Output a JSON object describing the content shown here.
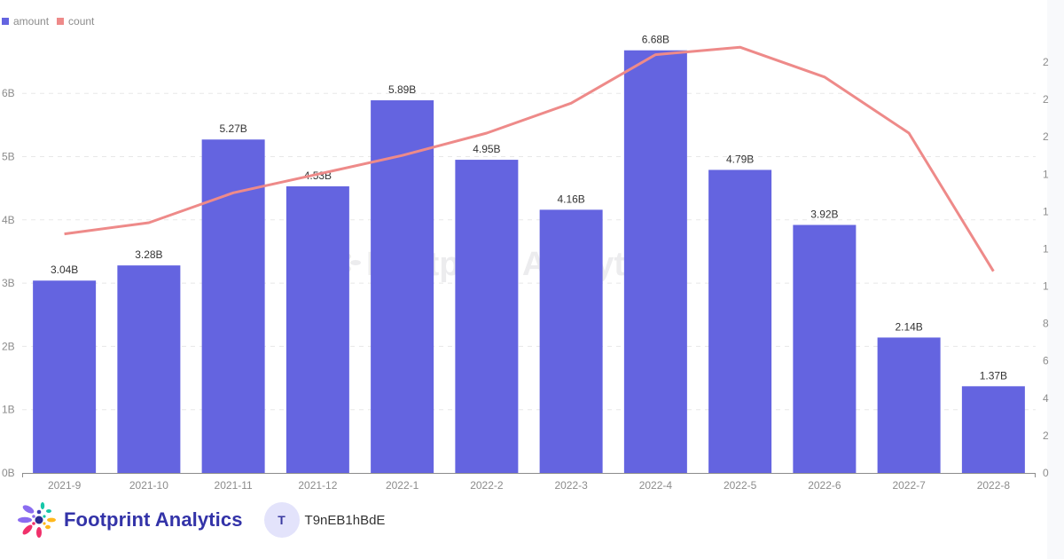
{
  "legend": [
    {
      "label": "amount",
      "color": "#6464e0"
    },
    {
      "label": "count",
      "color": "#ee8a89"
    }
  ],
  "left_axis": {
    "ticks": [
      "0B",
      "1B",
      "2B",
      "3B",
      "4B",
      "5B",
      "6B"
    ]
  },
  "right_axis": {
    "ticks_visible_fragments": [
      "2",
      "2",
      "2",
      "1",
      "1",
      "1",
      "1",
      "8",
      "6",
      "4",
      "2",
      "0"
    ]
  },
  "colors": {
    "bar": "#6464e0",
    "line": "#ee8a89",
    "grid": "#e8e8e8",
    "axis": "#8c8c8c",
    "brand": "#3333a8"
  },
  "watermark": "Footprint Analytics",
  "footer": {
    "brand_name": "Footprint Analytics",
    "avatar_initial": "T",
    "username": "T9nEB1hBdE"
  },
  "chart_data": {
    "type": "bar",
    "title": "",
    "xlabel": "",
    "ylabel": "",
    "categories": [
      "2021-9",
      "2021-10",
      "2021-11",
      "2021-12",
      "2022-1",
      "2022-2",
      "2022-3",
      "2022-4",
      "2022-5",
      "2022-6",
      "2022-7",
      "2022-8"
    ],
    "series": [
      {
        "name": "amount",
        "type": "bar",
        "axis": "left",
        "values": [
          3.04,
          3.28,
          5.27,
          4.53,
          5.89,
          4.95,
          4.16,
          6.68,
          4.79,
          3.92,
          2.14,
          1.37
        ],
        "unit": "B",
        "data_labels": [
          "3.04B",
          "3.28B",
          "5.27B",
          "4.53B",
          "5.89B",
          "4.95B",
          "4.16B",
          "6.68B",
          "4.79B",
          "3.92B",
          "2.14B",
          "1.37B"
        ]
      },
      {
        "name": "count",
        "type": "line",
        "axis": "right",
        "note": "right-axis tick labels are clipped; values given as estimated relative positions in right-axis tick units (0 at bottom, 11 at top tick)",
        "values": [
          6.4,
          6.7,
          7.5,
          8.0,
          8.5,
          9.1,
          9.9,
          11.2,
          11.4,
          10.6,
          9.1,
          5.4
        ]
      }
    ],
    "ylim_left": [
      0,
      6.7
    ],
    "grid": true,
    "legend_position": "top-left"
  }
}
